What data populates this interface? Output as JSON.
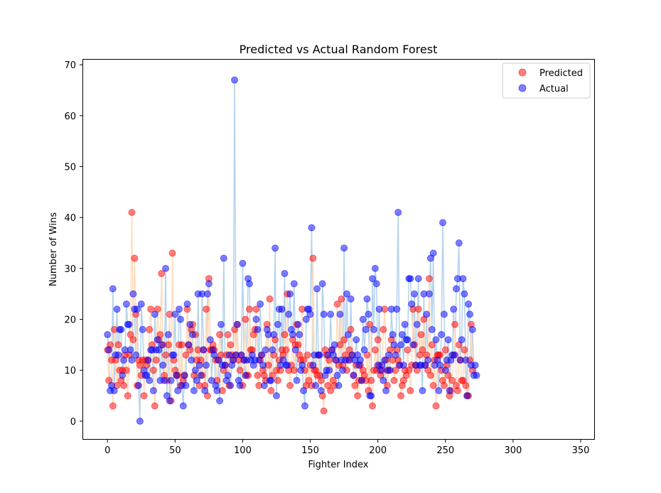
{
  "chart_data": {
    "type": "scatter",
    "title": "Predicted vs Actual Random Forest",
    "xlabel": "Fighter Index",
    "ylabel": "Number of Wins",
    "xlim": [
      -18,
      360
    ],
    "ylim": [
      -3.5,
      71
    ],
    "xticks": [
      0,
      50,
      100,
      150,
      200,
      250,
      300,
      350
    ],
    "yticks": [
      0,
      10,
      20,
      30,
      40,
      50,
      60,
      70
    ],
    "grid": false,
    "legend_position": "top-right",
    "series": [
      {
        "name": "Predicted",
        "color": "#ff0000",
        "line_color": "#ffdcbe",
        "values": [
          14,
          8,
          15,
          12,
          3,
          18,
          12,
          7,
          15,
          10,
          8,
          10,
          7,
          13,
          10,
          5,
          13,
          17,
          41,
          16,
          32,
          21,
          7,
          12,
          11,
          9,
          12,
          5,
          12,
          11,
          12,
          18,
          22,
          15,
          10,
          3,
          12,
          22,
          16,
          17,
          29,
          15,
          9,
          13,
          8,
          15,
          21,
          4,
          33,
          12,
          10,
          9,
          9,
          15,
          7,
          15,
          8,
          9,
          13,
          22,
          15,
          14,
          18,
          19,
          9,
          17,
          12,
          14,
          7,
          12,
          9,
          14,
          7,
          22,
          5,
          28,
          14,
          14,
          15,
          14,
          12,
          8,
          12,
          17,
          13,
          6,
          10,
          11,
          13,
          17,
          7,
          15,
          13,
          12,
          18,
          13,
          19,
          12,
          10,
          13,
          7,
          12,
          20,
          9,
          9,
          22,
          14,
          14,
          17,
          18,
          22,
          9,
          7,
          12,
          13,
          10,
          9,
          8,
          19,
          11,
          24,
          6,
          9,
          13,
          16,
          10,
          8,
          12,
          10,
          14,
          13,
          17,
          14,
          25,
          10,
          7,
          11,
          16,
          10,
          15,
          19,
          15,
          13,
          12,
          22,
          12,
          10,
          7,
          13,
          8,
          11,
          7,
          32,
          10,
          10,
          9,
          13,
          9,
          8,
          5,
          2,
          14,
          13,
          7,
          12,
          6,
          14,
          8,
          7,
          12,
          23,
          11,
          15,
          24,
          11,
          16,
          13,
          10,
          12,
          14,
          18,
          13,
          9,
          7,
          11,
          5,
          8,
          11,
          8,
          10,
          9,
          8,
          13,
          6,
          19,
          8,
          3,
          10,
          14,
          10,
          16,
          11,
          9,
          10,
          18,
          22,
          12,
          7,
          10,
          14,
          16,
          12,
          8,
          10,
          14,
          12,
          11,
          5,
          7,
          8,
          10,
          9,
          14,
          10,
          6,
          11,
          22,
          15,
          11,
          10,
          22,
          13,
          17,
          14,
          20,
          11,
          13,
          10,
          28,
          9,
          15,
          7,
          12,
          3,
          13,
          13,
          13,
          10,
          8,
          7,
          14,
          11,
          9,
          5,
          6,
          8,
          13,
          19,
          7,
          6,
          15,
          12,
          8,
          8,
          14,
          7,
          5,
          5,
          12,
          19,
          10
        ]
      },
      {
        "name": "Actual",
        "color": "#0000ff",
        "line_color": "#b4d2ec",
        "values": [
          17,
          14,
          6,
          7,
          26,
          6,
          13,
          22,
          13,
          18,
          18,
          9,
          12,
          14,
          23,
          19,
          19,
          14,
          12,
          25,
          22,
          13,
          22,
          7,
          0,
          23,
          18,
          10,
          9,
          9,
          12,
          8,
          14,
          14,
          6,
          21,
          14,
          16,
          14,
          8,
          15,
          11,
          8,
          30,
          5,
          17,
          4,
          8,
          13,
          13,
          21,
          9,
          6,
          22,
          20,
          7,
          3,
          9,
          7,
          23,
          15,
          19,
          12,
          17,
          6,
          10,
          8,
          25,
          11,
          9,
          25,
          14,
          6,
          11,
          25,
          27,
          16,
          8,
          14,
          13,
          7,
          6,
          12,
          4,
          19,
          11,
          32,
          11,
          8,
          9,
          13,
          7,
          11,
          12,
          67,
          13,
          19,
          8,
          7,
          13,
          31,
          12,
          9,
          12,
          28,
          27,
          12,
          13,
          11,
          12,
          20,
          18,
          12,
          23,
          13,
          11,
          7,
          14,
          18,
          17,
          8,
          8,
          14,
          17,
          34,
          5,
          19,
          22,
          11,
          22,
          12,
          29,
          11,
          11,
          21,
          25,
          18,
          17,
          27,
          14,
          8,
          19,
          17,
          10,
          11,
          6,
          3,
          20,
          22,
          22,
          21,
          38,
          11,
          13,
          7,
          26,
          13,
          13,
          6,
          27,
          21,
          9,
          10,
          13,
          10,
          21,
          14,
          13,
          15,
          12,
          9,
          7,
          21,
          12,
          10,
          34,
          12,
          25,
          17,
          12,
          24,
          13,
          9,
          12,
          16,
          13,
          11,
          12,
          8,
          20,
          14,
          18,
          24,
          21,
          5,
          5,
          28,
          18,
          30,
          27,
          11,
          22,
          10,
          11,
          8,
          12,
          6,
          10,
          13,
          10,
          22,
          17,
          15,
          13,
          22,
          41,
          11,
          15,
          17,
          11,
          19,
          16,
          16,
          28,
          28,
          23,
          15,
          25,
          11,
          19,
          28,
          11,
          11,
          6,
          25,
          11,
          21,
          12,
          25,
          32,
          18,
          33,
          11,
          16,
          12,
          6,
          11,
          17,
          39,
          21,
          10,
          12,
          16,
          6,
          12,
          13,
          22,
          13,
          26,
          28,
          35,
          12,
          16,
          28,
          25,
          12,
          5,
          23,
          21,
          11,
          18,
          9,
          11,
          9
        ]
      }
    ]
  }
}
